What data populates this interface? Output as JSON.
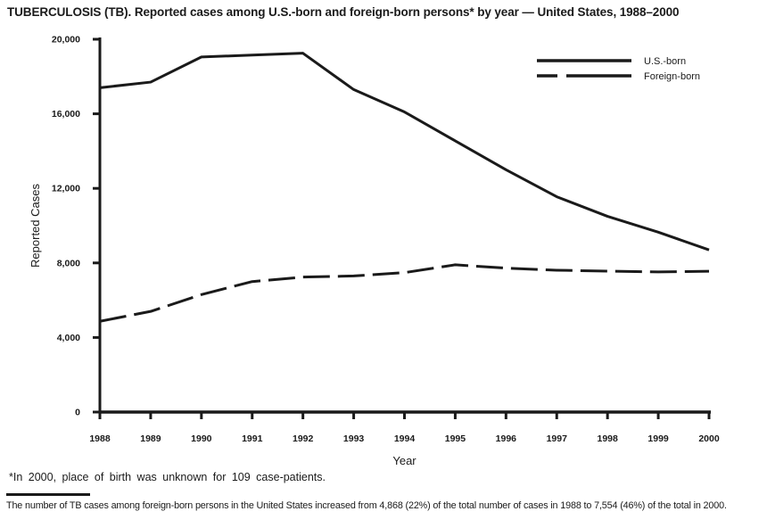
{
  "title": "TUBERCULOSIS (TB). Reported cases among U.S.-born and foreign-born persons* by year — United States, 1988–2000",
  "footnote": "*In 2000, place of birth was unknown for 109 case-patients.",
  "bottom_note": "The number of TB cases among foreign-born persons in the United States increased from 4,868 (22%) of the total number of cases in 1988 to 7,554 (46%) of the total in 2000.",
  "colors": {
    "ink": "#1a1a1a",
    "background": "#ffffff"
  },
  "chart_data": {
    "type": "line",
    "title": "",
    "xlabel": "Year",
    "ylabel": "Reported Cases",
    "ylim": [
      0,
      20000
    ],
    "grid": false,
    "legend_position": "top-right",
    "categories": [
      "1988",
      "1989",
      "1990",
      "1991",
      "1992",
      "1993",
      "1994",
      "1995",
      "1996",
      "1997",
      "1998",
      "1999",
      "2000"
    ],
    "y_ticks": [
      {
        "value": 0,
        "label": "0"
      },
      {
        "value": 4000,
        "label": "4,000"
      },
      {
        "value": 8000,
        "label": "8,000"
      },
      {
        "value": 12000,
        "label": "12,000"
      },
      {
        "value": 16000,
        "label": "16,000"
      },
      {
        "value": 20000,
        "label": "20,000"
      }
    ],
    "series": [
      {
        "name": "U.S.-born",
        "line_style": "solid",
        "values": [
          17400,
          17700,
          19050,
          19150,
          19250,
          17300,
          16100,
          14550,
          13000,
          11550,
          10500,
          9650,
          8700
        ]
      },
      {
        "name": "Foreign-born",
        "line_style": "dashed",
        "values": [
          4868,
          5400,
          6300,
          7000,
          7240,
          7300,
          7480,
          7900,
          7720,
          7610,
          7560,
          7520,
          7554
        ]
      }
    ]
  }
}
